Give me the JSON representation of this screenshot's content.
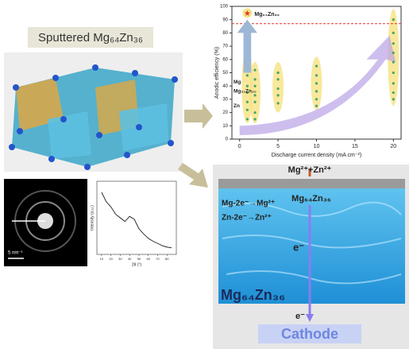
{
  "header": {
    "title": "Sputtered Mg₆₄Zn₃₆"
  },
  "saed": {
    "scale_label": "5 nm⁻¹"
  },
  "xrd": {
    "type": "line",
    "xlabel": "2θ (°)",
    "ylabel": "Intensity (a.u.)",
    "x": [
      10,
      15,
      20,
      25,
      30,
      35,
      40,
      45,
      50,
      55,
      60,
      65,
      70,
      75,
      80,
      85
    ],
    "values": [
      85,
      72,
      65,
      55,
      50,
      45,
      52,
      48,
      35,
      28,
      22,
      18,
      15,
      12,
      10,
      9
    ],
    "xlim": [
      5,
      90
    ],
    "ylim": [
      0,
      100
    ],
    "xticks": [
      10,
      20,
      30,
      40,
      50,
      60,
      70,
      80
    ],
    "color": "#000000"
  },
  "chart_data": {
    "type": "scatter",
    "xlabel": "Discharge current density (mA cm⁻²)",
    "ylabel": "Anodic efficiency (%)",
    "xlim": [
      -1,
      21
    ],
    "ylim": [
      0,
      100
    ],
    "xticks": [
      0,
      5,
      10,
      15,
      20
    ],
    "yticks": [
      0,
      10,
      20,
      30,
      40,
      50,
      60,
      70,
      80,
      90,
      100
    ],
    "reference_line": 87,
    "reference_color": "#e0302a",
    "star": {
      "label": "Mg₆₄Zn₃₆",
      "x": 1,
      "y": 95,
      "color": "#e8342a"
    },
    "ranges": {
      "x": [
        1,
        2,
        5,
        10,
        20
      ],
      "low": [
        12,
        12,
        20,
        22,
        25
      ],
      "high": [
        68,
        58,
        58,
        62,
        98
      ],
      "color": "#f7e48a"
    },
    "points": {
      "x": [
        1,
        1,
        1,
        1,
        1,
        1,
        1,
        1,
        2,
        2,
        2,
        2,
        2,
        2,
        2,
        5,
        5,
        5,
        5,
        5,
        10,
        10,
        10,
        10,
        10,
        10,
        20,
        20,
        20,
        20,
        20,
        20,
        20,
        20,
        20
      ],
      "y": [
        60,
        55,
        48,
        40,
        35,
        28,
        22,
        15,
        52,
        45,
        40,
        33,
        28,
        20,
        15,
        50,
        45,
        38,
        33,
        27,
        55,
        48,
        42,
        36,
        30,
        25,
        90,
        80,
        72,
        65,
        58,
        50,
        42,
        35,
        30
      ],
      "color": "#4aa36a"
    },
    "annotations": [
      "Mg",
      "Mg₅₁Zn₂₀",
      "Zn"
    ]
  },
  "battery": {
    "top_label": "Mg²⁺+Zn²⁺",
    "anode_small": "Mg₆₄Zn₃₆",
    "reactions": [
      "Mg-2e⁻→Mg²⁺",
      "Zn-2e⁻→Zn²⁺"
    ],
    "electron_top": "e⁻",
    "anode_big": "Mg₆₄Zn₃₆",
    "electron_bottom": "e⁻",
    "cathode": "Cathode"
  }
}
